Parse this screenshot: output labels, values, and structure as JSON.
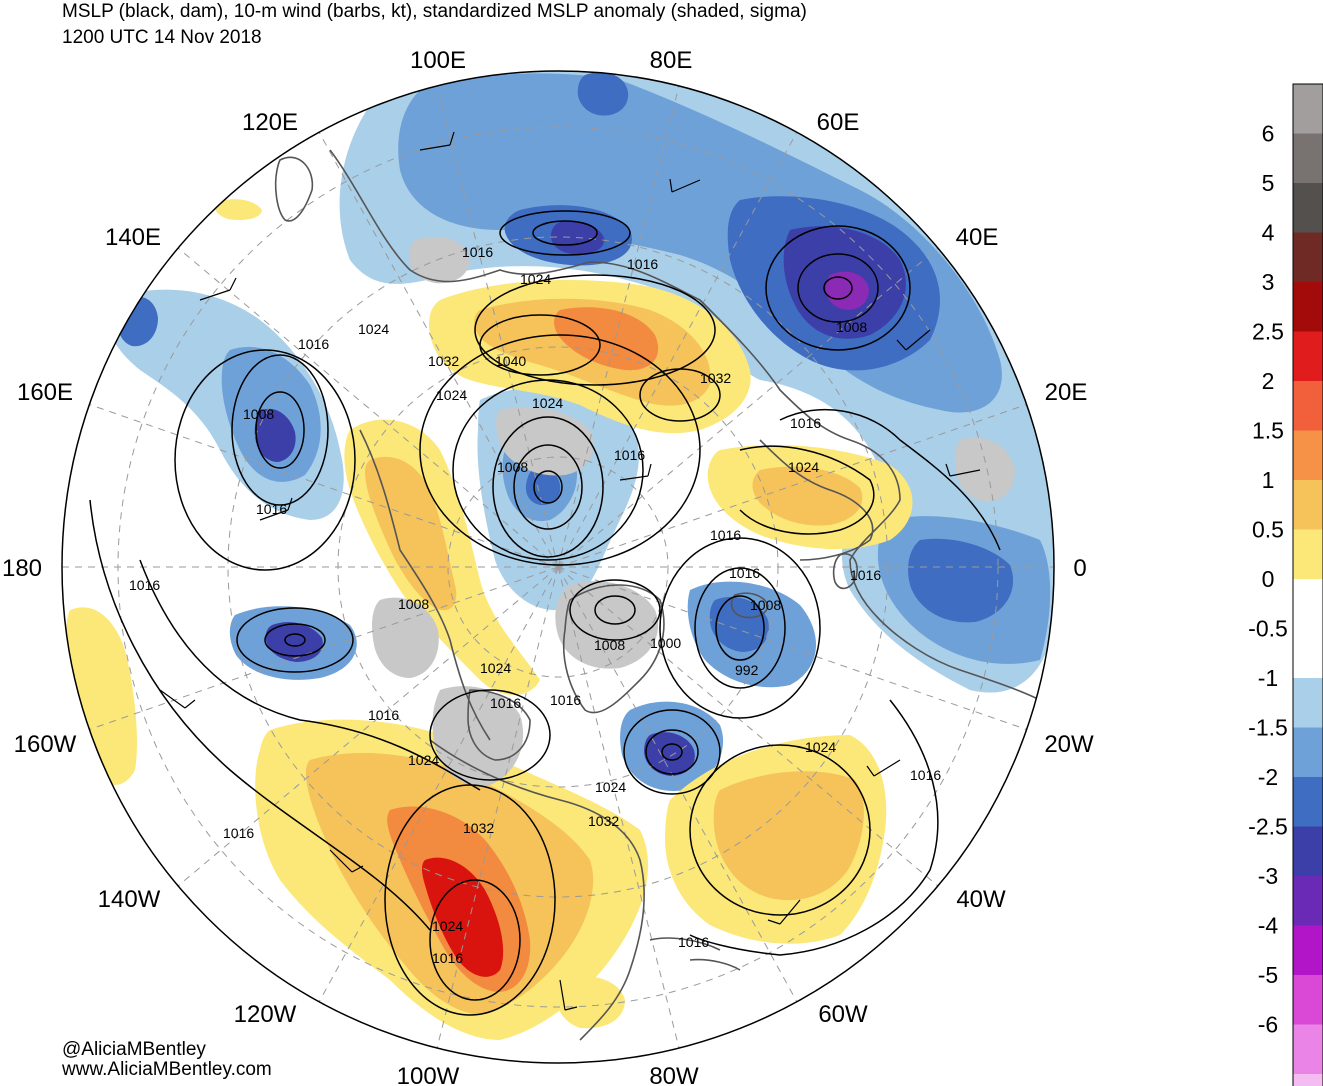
{
  "title": {
    "line1": "MSLP (black, dam), 10-m wind (barbs, kt), standardized MSLP anomaly (shaded, sigma)",
    "line2": "1200 UTC 14 Nov 2018"
  },
  "credits": {
    "handle": "@AliciaMBentley",
    "url": "www.AliciaMBentley.com"
  },
  "longitude_labels": [
    "100E",
    "80E",
    "120E",
    "60E",
    "140E",
    "40E",
    "160E",
    "20E",
    "180",
    "0",
    "160W",
    "20W",
    "140W",
    "40W",
    "120W",
    "60W",
    "100W",
    "80W"
  ],
  "isobar_labels": [
    "1016",
    "1016",
    "1024",
    "1024",
    "1032",
    "1040",
    "1024",
    "1032",
    "1016",
    "1008",
    "1008",
    "1024",
    "1016",
    "1016",
    "1008",
    "1024",
    "1016",
    "1016",
    "1016",
    "1016",
    "1008",
    "1008",
    "1008",
    "1000",
    "992",
    "1024",
    "1016",
    "1016",
    "1016",
    "1024",
    "1024",
    "1032",
    "1032",
    "1016",
    "1024",
    "1016",
    "1016",
    "1024",
    "1016",
    "1016"
  ],
  "colorbar": {
    "tick_labels": [
      "6",
      "5",
      "4",
      "3",
      "2.5",
      "2",
      "1.5",
      "1",
      "0.5",
      "0",
      "-0.5",
      "-1",
      "-1.5",
      "-2",
      "-2.5",
      "-3",
      "-4",
      "-5",
      "-6"
    ],
    "colors": [
      "#a39e9e",
      "#787370",
      "#54504d",
      "#702a26",
      "#a30b0b",
      "#e01c1c",
      "#f2603b",
      "#f59247",
      "#f5c35a",
      "#fbe878",
      "#ffffff",
      "#ffffff",
      "#a9cfe9",
      "#6fa1d9",
      "#3e6dc2",
      "#3c3fa7",
      "#6a2ab5",
      "#b115c7",
      "#da48d6",
      "#ea84e6",
      "#f4bcf1"
    ]
  },
  "anomaly_colors": {
    "strong_positive": "#d9140e",
    "positive_orange": "#f28a3f",
    "positive": "#f5c35a",
    "weak_positive": "#fbe878",
    "near_zero": "#ffffff",
    "weak_negative": "#a9cfe9",
    "negative": "#6fa1d9",
    "strong_negative": "#3e6dc2",
    "very_negative": "#3c3fa7",
    "extreme_negative": "#8a2ab5",
    "positive_gray": "#c8c8c8"
  }
}
